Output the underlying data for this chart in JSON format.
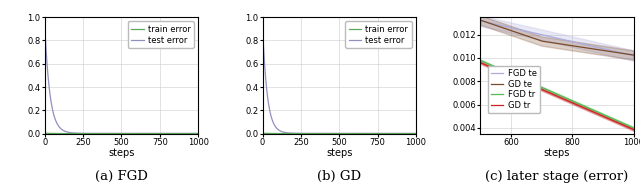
{
  "fig_width": 6.4,
  "fig_height": 1.91,
  "dpi": 100,
  "captions": [
    "(a) FGD",
    "(b) GD",
    "(c) later stage (error)"
  ],
  "xlabel": "steps",
  "ylim_full": [
    0.0,
    1.0
  ],
  "yticks_full": [
    0.0,
    0.2,
    0.4,
    0.6,
    0.8,
    1.0
  ],
  "ylim_later": [
    0.0035,
    0.0135
  ],
  "yticks_later": [
    0.004,
    0.006,
    0.008,
    0.01,
    0.012
  ],
  "xticks_full": [
    0,
    250,
    500,
    750,
    1000
  ],
  "xticks_later": [
    600,
    800,
    1000
  ],
  "color_train_fgd": "#5aaa5a",
  "color_test_fgd": "#9090c0",
  "color_train_gd": "#5aaa5a",
  "color_test_gd": "#9090c0",
  "color_fgd_te": "#aaaadd",
  "color_gd_te": "#7a4a2a",
  "color_fgd_tr": "#55bb55",
  "color_gd_tr": "#cc2222",
  "legend1": [
    "train error",
    "test error"
  ],
  "legend3": [
    "FGD te",
    "GD te",
    "FGD tr",
    "GD tr"
  ],
  "tick_fontsize": 6.0,
  "legend_fontsize": 6.0,
  "xlabel_fontsize": 7.0,
  "caption_fontsize": 9.5
}
